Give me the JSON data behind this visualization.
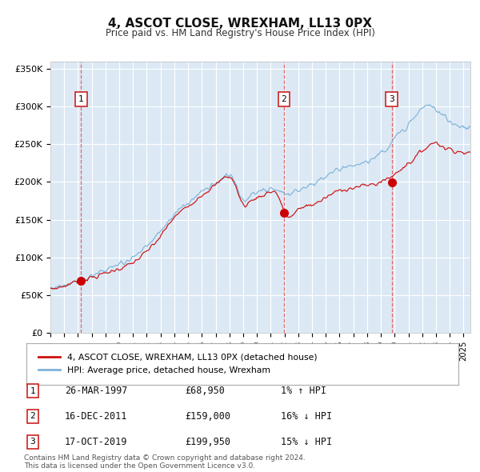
{
  "title": "4, ASCOT CLOSE, WREXHAM, LL13 0PX",
  "subtitle": "Price paid vs. HM Land Registry's House Price Index (HPI)",
  "background_color": "#dce9f5",
  "plot_bg_color": "#dce9f5",
  "grid_color": "#ffffff",
  "hpi_line_color": "#7fb4d8",
  "price_line_color": "#cc1111",
  "marker_color": "#cc0000",
  "vline_color": "#e05050",
  "ylim": [
    0,
    360000
  ],
  "yticks": [
    0,
    50000,
    100000,
    150000,
    200000,
    250000,
    300000,
    350000
  ],
  "ytick_labels": [
    "£0",
    "£50K",
    "£100K",
    "£150K",
    "£200K",
    "£250K",
    "£300K",
    "£350K"
  ],
  "sales": [
    {
      "date_x": 1997.23,
      "price": 68950,
      "label": "1"
    },
    {
      "date_x": 2011.96,
      "price": 159000,
      "label": "2"
    },
    {
      "date_x": 2019.79,
      "price": 199950,
      "label": "3"
    }
  ],
  "legend_entries": [
    {
      "color": "#cc1111",
      "label": "4, ASCOT CLOSE, WREXHAM, LL13 0PX (detached house)"
    },
    {
      "color": "#7fb4d8",
      "label": "HPI: Average price, detached house, Wrexham"
    }
  ],
  "table_rows": [
    {
      "num": "1",
      "date": "26-MAR-1997",
      "price": "£68,950",
      "hpi": "1% ↑ HPI"
    },
    {
      "num": "2",
      "date": "16-DEC-2011",
      "price": "£159,000",
      "hpi": "16% ↓ HPI"
    },
    {
      "num": "3",
      "date": "17-OCT-2019",
      "price": "£199,950",
      "hpi": "15% ↓ HPI"
    }
  ],
  "footer": "Contains HM Land Registry data © Crown copyright and database right 2024.\nThis data is licensed under the Open Government Licence v3.0.",
  "xmin": 1995.0,
  "xmax": 2025.5,
  "hpi_keypoints_t": [
    1994.5,
    1995.0,
    1996.0,
    1997.0,
    1998.0,
    1999.0,
    2000.0,
    2001.0,
    2002.0,
    2003.0,
    2004.0,
    2005.0,
    2006.0,
    2007.0,
    2007.5,
    2008.0,
    2008.5,
    2009.0,
    2009.5,
    2010.0,
    2011.0,
    2011.5,
    2012.0,
    2013.0,
    2014.0,
    2015.0,
    2016.0,
    2017.0,
    2018.0,
    2019.0,
    2019.5,
    2020.0,
    2020.5,
    2021.0,
    2021.5,
    2022.0,
    2022.5,
    2023.0,
    2023.5,
    2024.0,
    2024.5,
    2025.0,
    2025.6
  ],
  "hpi_keypoints_v": [
    57000,
    59000,
    63000,
    68000,
    75000,
    83000,
    90000,
    100000,
    115000,
    135000,
    157000,
    172000,
    187000,
    198000,
    205000,
    208000,
    195000,
    175000,
    180000,
    185000,
    192000,
    188000,
    183000,
    190000,
    197000,
    207000,
    217000,
    222000,
    227000,
    237000,
    245000,
    258000,
    268000,
    278000,
    287000,
    298000,
    303000,
    296000,
    288000,
    280000,
    276000,
    273000,
    271000
  ],
  "red_keypoints_t": [
    1994.5,
    1995.0,
    1996.0,
    1997.0,
    1998.0,
    1999.0,
    2000.0,
    2001.0,
    2002.0,
    2003.0,
    2004.0,
    2005.0,
    2006.0,
    2007.0,
    2007.5,
    2008.0,
    2008.5,
    2009.0,
    2009.5,
    2010.0,
    2011.0,
    2011.5,
    2012.0,
    2013.0,
    2014.0,
    2015.0,
    2016.0,
    2017.0,
    2018.0,
    2019.0,
    2019.5,
    2020.0,
    2020.5,
    2021.0,
    2021.5,
    2022.0,
    2022.5,
    2023.0,
    2023.5,
    2024.0,
    2024.5,
    2025.0,
    2025.6
  ],
  "red_keypoints_v": [
    56000,
    58000,
    62000,
    68950,
    73000,
    79000,
    85000,
    93000,
    108000,
    128000,
    153000,
    168000,
    183000,
    196000,
    204000,
    207000,
    192000,
    170000,
    174000,
    179000,
    187000,
    183000,
    159000,
    163000,
    170000,
    179000,
    189000,
    192000,
    196000,
    199950,
    205000,
    210000,
    218000,
    225000,
    232000,
    242000,
    248000,
    253000,
    246000,
    244000,
    241000,
    239000,
    237000
  ]
}
